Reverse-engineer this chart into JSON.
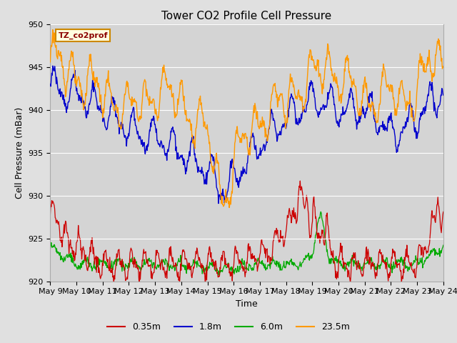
{
  "title": "Tower CO2 Profile Cell Pressure",
  "xlabel": "Time",
  "ylabel": "Cell Pressure (mBar)",
  "annotation": "TZ_co2prof",
  "ylim": [
    920,
    950
  ],
  "x_tick_labels": [
    "May 9",
    "May 10",
    "May 11",
    "May 12",
    "May 13",
    "May 14",
    "May 15",
    "May 16",
    "May 17",
    "May 18",
    "May 19",
    "May 20",
    "May 21",
    "May 22",
    "May 23",
    "May 24"
  ],
  "series_labels": [
    "0.35m",
    "1.8m",
    "6.0m",
    "23.5m"
  ],
  "series_colors": [
    "#cc0000",
    "#0000cc",
    "#00aa00",
    "#ff9900"
  ],
  "fig_bg_color": "#e0e0e0",
  "plot_bg_color": "#d4d4d4",
  "grid_color": "#ffffff",
  "title_fontsize": 11,
  "axis_label_fontsize": 9,
  "tick_fontsize": 8,
  "y_ticks": [
    920,
    925,
    930,
    935,
    940,
    945,
    950
  ]
}
